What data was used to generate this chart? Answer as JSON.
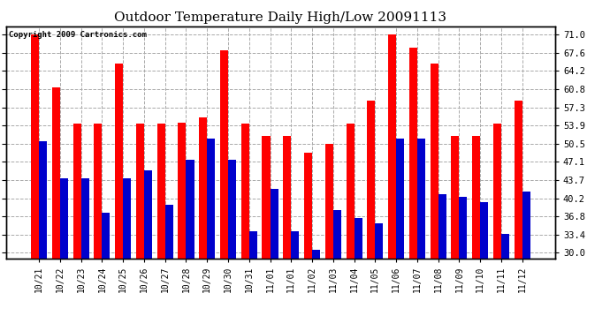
{
  "title": "Outdoor Temperature Daily High/Low 20091113",
  "copyright": "Copyright 2009 Cartronics.com",
  "dates": [
    "10/21",
    "10/22",
    "10/23",
    "10/24",
    "10/25",
    "10/26",
    "10/27",
    "10/28",
    "10/29",
    "10/30",
    "10/31",
    "11/01",
    "11/01",
    "11/02",
    "11/03",
    "11/04",
    "11/05",
    "11/06",
    "11/07",
    "11/08",
    "11/09",
    "11/10",
    "11/11",
    "11/12"
  ],
  "highs": [
    71.0,
    61.0,
    54.2,
    54.2,
    65.5,
    54.2,
    54.2,
    54.5,
    55.5,
    68.0,
    54.2,
    52.0,
    52.0,
    48.8,
    50.5,
    54.2,
    58.5,
    71.0,
    68.5,
    65.5,
    52.0,
    52.0,
    54.2,
    58.5
  ],
  "lows": [
    51.0,
    44.0,
    44.0,
    37.5,
    44.0,
    45.5,
    39.0,
    47.5,
    51.5,
    47.5,
    34.0,
    42.0,
    34.0,
    30.5,
    38.0,
    36.5,
    35.5,
    51.5,
    51.5,
    41.0,
    40.5,
    39.5,
    33.5,
    41.5
  ],
  "high_color": "#ff0000",
  "low_color": "#0000cc",
  "bg_color": "#ffffff",
  "grid_color": "#aaaaaa",
  "title_fontsize": 11,
  "yticks": [
    30.0,
    33.4,
    36.8,
    40.2,
    43.7,
    47.1,
    50.5,
    53.9,
    57.3,
    60.8,
    64.2,
    67.6,
    71.0
  ],
  "ylim": [
    29.0,
    72.5
  ],
  "bar_width": 0.38,
  "figsize": [
    6.9,
    3.75
  ],
  "dpi": 100
}
